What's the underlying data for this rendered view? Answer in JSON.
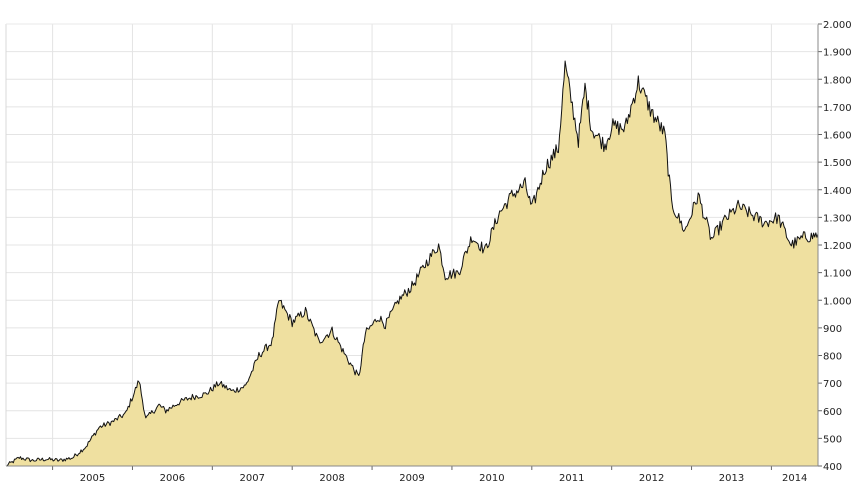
{
  "chart_data": {
    "type": "area",
    "title": "",
    "xlabel": "",
    "ylabel": "",
    "x_tick_labels": [
      "2005",
      "2006",
      "2007",
      "2008",
      "2009",
      "2010",
      "2011",
      "2012",
      "2013",
      "2014"
    ],
    "y_tick_labels": [
      "400",
      "500",
      "600",
      "700",
      "800",
      "900",
      "1.000",
      "1.100",
      "1.200",
      "1.300",
      "1.400",
      "1.500",
      "1.600",
      "1.700",
      "1.800",
      "1.900",
      "2.000"
    ],
    "y_ticks": [
      400,
      500,
      600,
      700,
      800,
      900,
      1000,
      1100,
      1200,
      1300,
      1400,
      1500,
      1600,
      1700,
      1800,
      1900,
      2000
    ],
    "xlim": [
      "2004-06",
      "2014-08"
    ],
    "ylim": [
      400,
      2000
    ],
    "grid": true,
    "y_axis_side": "right",
    "fill_color": "#efe0a0",
    "line_color": "#111111",
    "grid_color": "#e4e4e4",
    "series": [
      {
        "x": [
          "2004-06",
          "2004-08",
          "2004-10",
          "2004-12",
          "2005-02",
          "2005-04",
          "2005-06",
          "2005-08",
          "2005-10",
          "2005-12",
          "2006-02",
          "2006-03",
          "2006-05",
          "2006-06",
          "2006-08",
          "2006-10",
          "2006-12",
          "2007-02",
          "2007-04",
          "2007-06",
          "2007-08",
          "2007-10",
          "2007-11",
          "2008-01",
          "2008-03",
          "2008-05",
          "2008-07",
          "2008-09",
          "2008-11",
          "2008-12",
          "2009-02",
          "2009-03",
          "2009-05",
          "2009-07",
          "2009-09",
          "2009-11",
          "2009-12",
          "2010-02",
          "2010-04",
          "2010-06",
          "2010-08",
          "2010-10",
          "2010-12",
          "2011-01",
          "2011-03",
          "2011-05",
          "2011-06",
          "2011-08",
          "2011-09",
          "2011-10",
          "2011-12",
          "2012-01",
          "2012-03",
          "2012-05",
          "2012-07",
          "2012-09",
          "2012-10",
          "2012-12",
          "2013-02",
          "2013-04",
          "2013-06",
          "2013-08",
          "2013-10",
          "2013-12",
          "2014-02",
          "2014-04",
          "2014-06",
          "2014-07",
          "2014-08"
        ],
        "y": [
          400,
          430,
          420,
          425,
          420,
          430,
          470,
          540,
          560,
          590,
          710,
          570,
          620,
          600,
          630,
          650,
          660,
          700,
          670,
          690,
          800,
          850,
          1000,
          920,
          960,
          850,
          890,
          800,
          720,
          880,
          940,
          910,
          1000,
          1050,
          1130,
          1200,
          1090,
          1100,
          1230,
          1180,
          1310,
          1380,
          1420,
          1330,
          1480,
          1550,
          1850,
          1580,
          1770,
          1620,
          1560,
          1630,
          1620,
          1790,
          1680,
          1600,
          1350,
          1250,
          1380,
          1220,
          1290,
          1340,
          1310,
          1280,
          1300,
          1200,
          1230,
          1230,
          1240
        ]
      }
    ]
  }
}
